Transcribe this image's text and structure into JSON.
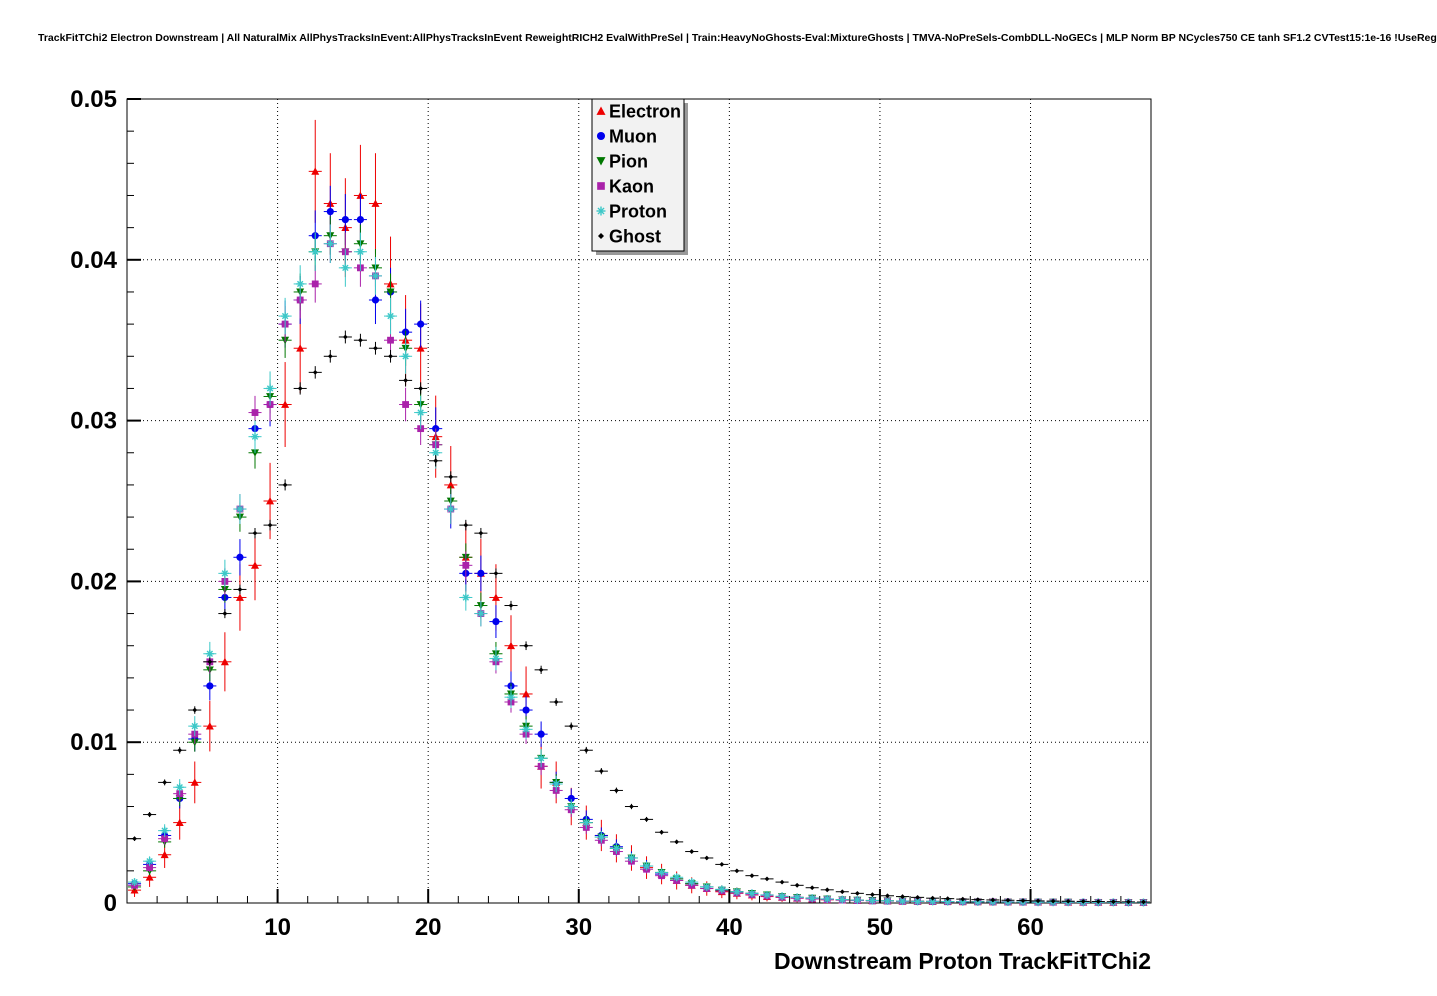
{
  "page": {
    "background": "#ffffff"
  },
  "header": {
    "title": "TrackFitTChi2 Electron Downstream | All NaturalMix AllPhysTracksInEvent:AllPhysTracksInEvent ReweightRICH2 EvalWithPreSel | Train:HeavyNoGhosts-Eval:MixtureGhosts | TMVA-NoPreSels-CombDLL-NoGECs | MLP Norm BP NCycles750 CE tanh SF1.2 CVTest15:1e-16 !UseReg"
  },
  "chart_data": {
    "type": "scatter",
    "title": "TrackFitTChi2 Electron Downstream | All NaturalMix AllPhysTracksInEvent:AllPhysTracksInEvent ReweightRICH2 EvalWithPreSel | Train:HeavyNoGhosts-Eval:MixtureGhosts | TMVA-NoPreSels-CombDLL-NoGECs | MLP Norm BP NCycles750 CE tanh SF1.2 CVTest15:1e-16 !UseReg",
    "xlabel": "Downstream Proton TrackFitTChi2",
    "ylabel": "",
    "xlim": [
      0,
      68
    ],
    "ylim": [
      0,
      0.05
    ],
    "xticks": [
      10,
      20,
      30,
      40,
      50,
      60
    ],
    "yticks": [
      0,
      0.01,
      0.02,
      0.03,
      0.04,
      0.05
    ],
    "ytick_labels": [
      "0",
      "0.01",
      "0.02",
      "0.03",
      "0.04",
      "0.05"
    ],
    "grid": true,
    "legend_position": "top-center",
    "x": [
      0.5,
      1.5,
      2.5,
      3.5,
      4.5,
      5.5,
      6.5,
      7.5,
      8.5,
      9.5,
      10.5,
      11.5,
      12.5,
      13.5,
      14.5,
      15.5,
      16.5,
      17.5,
      18.5,
      19.5,
      20.5,
      21.5,
      22.5,
      23.5,
      24.5,
      25.5,
      26.5,
      27.5,
      28.5,
      29.5,
      30.5,
      31.5,
      32.5,
      33.5,
      34.5,
      35.5,
      36.5,
      37.5,
      38.5,
      39.5,
      40.5,
      41.5,
      42.5,
      43.5,
      44.5,
      45.5,
      46.5,
      47.5,
      48.5,
      49.5,
      50.5,
      51.5,
      52.5,
      53.5,
      54.5,
      55.5,
      56.5,
      57.5,
      58.5,
      59.5,
      60.5,
      61.5,
      62.5,
      63.5,
      64.5,
      65.5,
      66.5,
      67.5
    ],
    "series": [
      {
        "name": "Electron",
        "color": "#ee0000",
        "marker": "triangle-up",
        "error_scale": 0.0032,
        "values": [
          0.0008,
          0.0016,
          0.003,
          0.005,
          0.0075,
          0.011,
          0.015,
          0.019,
          0.021,
          0.025,
          0.031,
          0.0345,
          0.0455,
          0.0435,
          0.042,
          0.044,
          0.0435,
          0.0385,
          0.035,
          0.0345,
          0.029,
          0.026,
          0.0215,
          0.0205,
          0.019,
          0.016,
          0.013,
          0.0085,
          0.0075,
          0.006,
          0.005,
          0.0042,
          0.0034,
          0.0028,
          0.0022,
          0.0018,
          0.0014,
          0.0011,
          0.0009,
          0.0007,
          0.0006,
          0.0005,
          0.0004,
          0.00035,
          0.0003,
          0.00025,
          0.0002,
          0.00018,
          0.00016,
          0.00014,
          0.00012,
          0.00011,
          0.0001,
          9e-05,
          9e-05,
          8e-05,
          8e-05,
          7e-05,
          7e-05,
          6e-05,
          6e-05,
          6e-05,
          5e-05,
          5e-05,
          5e-05,
          4e-05,
          4e-05,
          4e-05
        ]
      },
      {
        "name": "Muon",
        "color": "#0000ee",
        "marker": "circle",
        "error_scale": 0.0016,
        "values": [
          0.0012,
          0.0024,
          0.0042,
          0.0065,
          0.0102,
          0.0135,
          0.019,
          0.0215,
          0.0295,
          0.031,
          0.036,
          0.0375,
          0.0415,
          0.043,
          0.0425,
          0.0425,
          0.0375,
          0.038,
          0.0355,
          0.036,
          0.0295,
          0.0245,
          0.0205,
          0.0205,
          0.0175,
          0.0135,
          0.012,
          0.0105,
          0.0075,
          0.0065,
          0.0052,
          0.0042,
          0.0035,
          0.0028,
          0.0023,
          0.0018,
          0.0015,
          0.0012,
          0.001,
          0.0008,
          0.0007,
          0.0006,
          0.0005,
          0.0004,
          0.00035,
          0.0003,
          0.00025,
          0.0002,
          0.00018,
          0.00015,
          0.00013,
          0.00012,
          0.0001,
          0.0001,
          9e-05,
          8e-05,
          8e-05,
          7e-05,
          7e-05,
          6e-05,
          6e-05,
          5e-05,
          5e-05,
          5e-05,
          4e-05,
          4e-05,
          4e-05,
          3e-05
        ]
      },
      {
        "name": "Pion",
        "color": "#007700",
        "marker": "triangle-down",
        "error_scale": 0.0012,
        "values": [
          0.001,
          0.002,
          0.0038,
          0.0065,
          0.01,
          0.0145,
          0.0195,
          0.024,
          0.028,
          0.0315,
          0.035,
          0.038,
          0.0405,
          0.0415,
          0.0405,
          0.041,
          0.0395,
          0.038,
          0.0345,
          0.031,
          0.0285,
          0.025,
          0.0215,
          0.0185,
          0.0155,
          0.013,
          0.011,
          0.009,
          0.0075,
          0.006,
          0.005,
          0.0041,
          0.0034,
          0.0028,
          0.0023,
          0.0019,
          0.0015,
          0.0012,
          0.001,
          0.0008,
          0.0007,
          0.0006,
          0.0005,
          0.0004,
          0.00035,
          0.0003,
          0.00025,
          0.0002,
          0.00018,
          0.00016,
          0.00014,
          0.00012,
          0.00011,
          0.0001,
          9e-05,
          8e-05,
          8e-05,
          7e-05,
          6e-05,
          6e-05,
          5e-05,
          5e-05,
          5e-05,
          4e-05,
          4e-05,
          4e-05,
          3e-05,
          3e-05
        ]
      },
      {
        "name": "Kaon",
        "color": "#aa22aa",
        "marker": "square",
        "error_scale": 0.0012,
        "values": [
          0.0011,
          0.0022,
          0.004,
          0.0068,
          0.0105,
          0.015,
          0.02,
          0.0245,
          0.0305,
          0.031,
          0.036,
          0.0375,
          0.0385,
          0.041,
          0.0405,
          0.0395,
          0.039,
          0.035,
          0.031,
          0.0295,
          0.0285,
          0.0245,
          0.021,
          0.018,
          0.015,
          0.0125,
          0.0105,
          0.0085,
          0.007,
          0.0058,
          0.0047,
          0.0039,
          0.0032,
          0.0026,
          0.0021,
          0.0017,
          0.0014,
          0.0011,
          0.0009,
          0.00075,
          0.00062,
          0.00052,
          0.00043,
          0.00036,
          0.0003,
          0.00025,
          0.00021,
          0.00018,
          0.00015,
          0.00013,
          0.00012,
          0.0001,
          0.0001,
          9e-05,
          8e-05,
          8e-05,
          7e-05,
          7e-05,
          6e-05,
          6e-05,
          5e-05,
          5e-05,
          5e-05,
          4e-05,
          4e-05,
          4e-05,
          3e-05,
          3e-05
        ]
      },
      {
        "name": "Proton",
        "color": "#3cc8c8",
        "marker": "star",
        "error_scale": 0.0012,
        "values": [
          0.0013,
          0.0026,
          0.0045,
          0.0072,
          0.011,
          0.0155,
          0.0205,
          0.0245,
          0.029,
          0.032,
          0.0365,
          0.0385,
          0.0405,
          0.041,
          0.0395,
          0.0405,
          0.039,
          0.0365,
          0.034,
          0.0305,
          0.028,
          0.0245,
          0.019,
          0.018,
          0.0152,
          0.0128,
          0.0108,
          0.009,
          0.0074,
          0.006,
          0.005,
          0.0041,
          0.0034,
          0.0028,
          0.0023,
          0.0019,
          0.0016,
          0.0013,
          0.001,
          0.00085,
          0.0007,
          0.0006,
          0.0005,
          0.00042,
          0.00035,
          0.0003,
          0.00025,
          0.00021,
          0.00018,
          0.00015,
          0.00013,
          0.00012,
          0.0001,
          0.0001,
          9e-05,
          8e-05,
          7e-05,
          7e-05,
          6e-05,
          6e-05,
          5e-05,
          5e-05,
          5e-05,
          4e-05,
          4e-05,
          4e-05,
          3e-05,
          3e-05
        ]
      },
      {
        "name": "Ghost",
        "color": "#000000",
        "marker": "diamond",
        "error_scale": 0.0004,
        "values": [
          0.004,
          0.0055,
          0.0075,
          0.0095,
          0.012,
          0.015,
          0.018,
          0.0195,
          0.023,
          0.0235,
          0.026,
          0.032,
          0.033,
          0.034,
          0.0352,
          0.035,
          0.0345,
          0.034,
          0.0325,
          0.032,
          0.0275,
          0.0265,
          0.0235,
          0.023,
          0.0205,
          0.0185,
          0.016,
          0.0145,
          0.0125,
          0.011,
          0.0095,
          0.0082,
          0.007,
          0.006,
          0.0052,
          0.0044,
          0.0038,
          0.0032,
          0.0028,
          0.0024,
          0.002,
          0.0017,
          0.0015,
          0.0013,
          0.0011,
          0.00095,
          0.00082,
          0.0007,
          0.0006,
          0.00052,
          0.00045,
          0.0004,
          0.00035,
          0.0003,
          0.00027,
          0.00024,
          0.00021,
          0.00019,
          0.00017,
          0.00015,
          0.00013,
          0.00012,
          0.00011,
          0.0001,
          9e-05,
          8e-05,
          7e-05,
          6e-05
        ]
      }
    ]
  }
}
